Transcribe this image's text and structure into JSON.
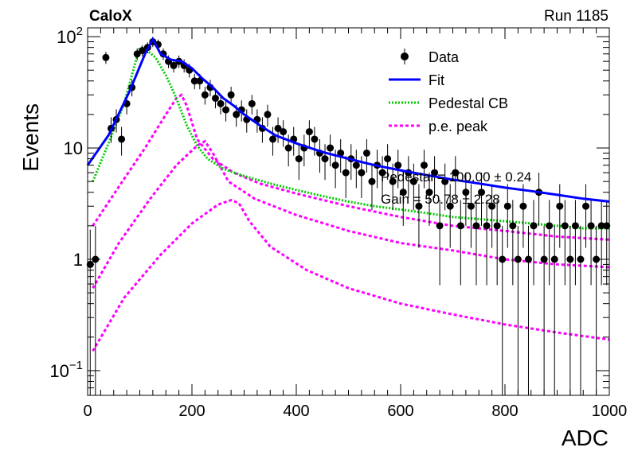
{
  "header": {
    "left_label": "CaloX",
    "right_label": "Run 1185"
  },
  "overlay": {
    "line1": "Pedestal = 100.00 ± 0.24",
    "line2": "Gain = 50.78 ± 2.28"
  },
  "colors": {
    "data": "#000000",
    "fit": "#0000ff",
    "pedestal": "#00cc00",
    "pe": "#ff00ff",
    "axis": "#000000"
  },
  "chart_data": {
    "type": "scatter",
    "xlabel": "ADC",
    "ylabel": "Events",
    "xlim": [
      0,
      1000
    ],
    "ylim": [
      0.06,
      120
    ],
    "yscale": "log",
    "x_ticks": [
      0,
      200,
      400,
      600,
      800,
      1000
    ],
    "y_ticks": [
      {
        "value": 0.1,
        "base": "10",
        "exp": "−1"
      },
      {
        "value": 1,
        "label": "1"
      },
      {
        "value": 10,
        "label": "10"
      },
      {
        "value": 100,
        "base": "10",
        "exp": "2"
      }
    ],
    "legend": {
      "position": "top-right",
      "entries": [
        {
          "label": "Data",
          "series": "data"
        },
        {
          "label": "Fit",
          "series": "fit"
        },
        {
          "label": "Pedestal CB",
          "series": "pedestal"
        },
        {
          "label": "p.e. peak",
          "series": "pe"
        }
      ]
    },
    "data_points": [
      [
        5,
        0.9
      ],
      [
        15,
        1
      ],
      [
        35,
        65
      ],
      [
        45,
        15
      ],
      [
        55,
        18
      ],
      [
        65,
        12
      ],
      [
        75,
        25
      ],
      [
        85,
        35
      ],
      [
        95,
        70
      ],
      [
        105,
        75
      ],
      [
        115,
        80
      ],
      [
        125,
        90
      ],
      [
        135,
        85
      ],
      [
        145,
        70
      ],
      [
        155,
        60
      ],
      [
        165,
        55
      ],
      [
        175,
        60
      ],
      [
        185,
        55
      ],
      [
        195,
        50
      ],
      [
        205,
        40
      ],
      [
        215,
        40
      ],
      [
        225,
        30
      ],
      [
        235,
        35
      ],
      [
        245,
        28
      ],
      [
        255,
        25
      ],
      [
        265,
        22
      ],
      [
        275,
        30
      ],
      [
        285,
        20
      ],
      [
        295,
        22
      ],
      [
        305,
        18
      ],
      [
        315,
        25
      ],
      [
        325,
        18
      ],
      [
        335,
        15
      ],
      [
        345,
        20
      ],
      [
        355,
        12
      ],
      [
        365,
        15
      ],
      [
        375,
        14
      ],
      [
        385,
        10
      ],
      [
        395,
        12
      ],
      [
        405,
        8
      ],
      [
        415,
        10
      ],
      [
        425,
        14
      ],
      [
        435,
        12
      ],
      [
        445,
        9
      ],
      [
        455,
        8
      ],
      [
        465,
        10
      ],
      [
        475,
        7
      ],
      [
        485,
        9
      ],
      [
        495,
        6
      ],
      [
        505,
        8
      ],
      [
        515,
        7
      ],
      [
        525,
        6
      ],
      [
        535,
        9
      ],
      [
        545,
        5
      ],
      [
        555,
        7
      ],
      [
        565,
        6
      ],
      [
        575,
        8
      ],
      [
        585,
        5
      ],
      [
        595,
        7
      ],
      [
        605,
        4
      ],
      [
        615,
        6
      ],
      [
        625,
        5
      ],
      [
        635,
        3
      ],
      [
        645,
        7
      ],
      [
        655,
        4
      ],
      [
        665,
        6
      ],
      [
        675,
        2
      ],
      [
        685,
        5
      ],
      [
        695,
        3
      ],
      [
        705,
        6
      ],
      [
        715,
        2
      ],
      [
        725,
        4
      ],
      [
        735,
        3
      ],
      [
        745,
        2
      ],
      [
        755,
        4
      ],
      [
        765,
        2
      ],
      [
        775,
        3
      ],
      [
        785,
        2
      ],
      [
        795,
        1
      ],
      [
        805,
        3
      ],
      [
        815,
        2
      ],
      [
        825,
        1
      ],
      [
        835,
        3
      ],
      [
        845,
        1
      ],
      [
        855,
        2
      ],
      [
        865,
        4
      ],
      [
        875,
        1
      ],
      [
        885,
        2
      ],
      [
        895,
        1
      ],
      [
        905,
        3
      ],
      [
        915,
        2
      ],
      [
        925,
        1
      ],
      [
        935,
        2
      ],
      [
        945,
        1
      ],
      [
        955,
        3
      ],
      [
        965,
        2
      ],
      [
        975,
        1
      ],
      [
        985,
        2
      ],
      [
        995,
        2
      ]
    ],
    "fit_curve": [
      [
        0,
        7
      ],
      [
        40,
        13
      ],
      [
        80,
        32
      ],
      [
        110,
        70
      ],
      [
        125,
        95
      ],
      [
        140,
        70
      ],
      [
        160,
        62
      ],
      [
        180,
        60
      ],
      [
        200,
        52
      ],
      [
        220,
        42
      ],
      [
        240,
        35
      ],
      [
        260,
        28
      ],
      [
        280,
        24
      ],
      [
        300,
        20
      ],
      [
        330,
        16
      ],
      [
        360,
        13
      ],
      [
        400,
        11
      ],
      [
        450,
        9.2
      ],
      [
        500,
        8
      ],
      [
        550,
        7
      ],
      [
        600,
        6.3
      ],
      [
        650,
        5.7
      ],
      [
        700,
        5.2
      ],
      [
        750,
        4.8
      ],
      [
        800,
        4.4
      ],
      [
        850,
        4.1
      ],
      [
        900,
        3.8
      ],
      [
        950,
        3.5
      ],
      [
        1000,
        3.3
      ]
    ],
    "pedestal_curve": [
      [
        10,
        5
      ],
      [
        40,
        11
      ],
      [
        70,
        25
      ],
      [
        90,
        55
      ],
      [
        100,
        80
      ],
      [
        110,
        78
      ],
      [
        130,
        65
      ],
      [
        150,
        45
      ],
      [
        170,
        28
      ],
      [
        190,
        16
      ],
      [
        210,
        10.5
      ],
      [
        230,
        8
      ],
      [
        260,
        6.5
      ],
      [
        300,
        5.6
      ],
      [
        350,
        4.8
      ],
      [
        400,
        4.2
      ],
      [
        450,
        3.7
      ],
      [
        500,
        3.3
      ],
      [
        550,
        3
      ],
      [
        600,
        2.8
      ],
      [
        650,
        2.6
      ],
      [
        700,
        2.4
      ],
      [
        750,
        2.3
      ],
      [
        800,
        2.2
      ],
      [
        850,
        2.1
      ],
      [
        900,
        2
      ],
      [
        950,
        1.9
      ],
      [
        1000,
        1.9
      ]
    ],
    "pe_peaks": [
      [
        [
          10,
          2
        ],
        [
          60,
          4.5
        ],
        [
          110,
          10
        ],
        [
          150,
          20
        ],
        [
          170,
          28
        ],
        [
          180,
          30
        ],
        [
          190,
          24
        ],
        [
          210,
          12
        ],
        [
          240,
          8
        ],
        [
          280,
          6
        ],
        [
          330,
          4.8
        ],
        [
          400,
          3.9
        ],
        [
          500,
          3
        ],
        [
          600,
          2.4
        ],
        [
          700,
          2
        ],
        [
          800,
          1.8
        ],
        [
          900,
          1.6
        ],
        [
          1000,
          1.5
        ]
      ],
      [
        [
          10,
          0.55
        ],
        [
          60,
          1.4
        ],
        [
          120,
          3.5
        ],
        [
          170,
          7
        ],
        [
          210,
          10.5
        ],
        [
          225,
          11.5
        ],
        [
          240,
          9
        ],
        [
          270,
          5
        ],
        [
          320,
          3.5
        ],
        [
          400,
          2.5
        ],
        [
          500,
          1.8
        ],
        [
          600,
          1.4
        ],
        [
          700,
          1.2
        ],
        [
          800,
          1
        ],
        [
          900,
          0.9
        ],
        [
          1000,
          0.85
        ]
      ],
      [
        [
          10,
          0.15
        ],
        [
          70,
          0.45
        ],
        [
          140,
          1.1
        ],
        [
          200,
          2.1
        ],
        [
          250,
          3.1
        ],
        [
          275,
          3.4
        ],
        [
          290,
          3.2
        ],
        [
          310,
          2.2
        ],
        [
          350,
          1.3
        ],
        [
          420,
          0.8
        ],
        [
          500,
          0.55
        ],
        [
          600,
          0.4
        ],
        [
          700,
          0.32
        ],
        [
          800,
          0.26
        ],
        [
          900,
          0.22
        ],
        [
          1000,
          0.19
        ]
      ]
    ]
  }
}
